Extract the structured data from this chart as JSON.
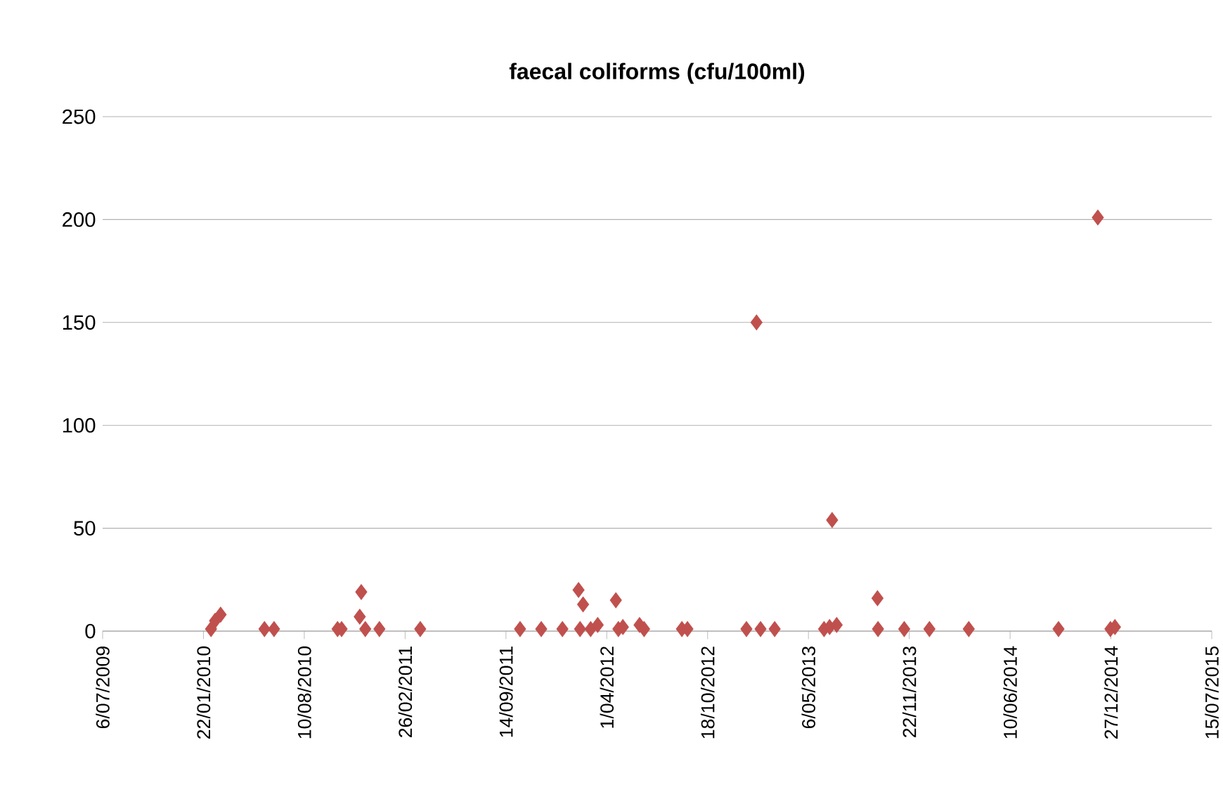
{
  "chart_data": {
    "type": "scatter",
    "title": "faecal coliforms (cfu/100ml)",
    "x": [
      "2010-02-06",
      "2010-02-14",
      "2010-02-25",
      "2010-05-23",
      "2010-06-11",
      "2010-10-15",
      "2010-10-23",
      "2010-12-01",
      "2010-11-28",
      "2010-12-09",
      "2011-01-06",
      "2011-03-28",
      "2011-10-12",
      "2011-11-23",
      "2012-01-04",
      "2012-02-05",
      "2012-02-14",
      "2012-02-08",
      "2012-02-29",
      "2012-03-14",
      "2012-04-19",
      "2012-04-24",
      "2012-05-03",
      "2012-06-05",
      "2012-06-14",
      "2012-08-28",
      "2012-09-08",
      "2013-01-03",
      "2013-01-23",
      "2013-01-31",
      "2013-02-28",
      "2013-06-06",
      "2013-06-17",
      "2013-06-22",
      "2013-07-01",
      "2013-09-20",
      "2013-09-21",
      "2013-11-12",
      "2014-01-01",
      "2014-03-20",
      "2014-09-14",
      "2014-12-01",
      "2014-12-26",
      "2015-01-04"
    ],
    "values": [
      1,
      5,
      8,
      1,
      1,
      1,
      1,
      19,
      7,
      1,
      1,
      1,
      1,
      1,
      1,
      20,
      13,
      1,
      1,
      3,
      15,
      1,
      2,
      3,
      1,
      1,
      1,
      1,
      150,
      1,
      1,
      1,
      2,
      54,
      3,
      16,
      1,
      1,
      1,
      1,
      1,
      201,
      1,
      2
    ],
    "color": "#c0504d",
    "marker": "diamond",
    "xlim": [
      "2009-07-06",
      "2015-07-15"
    ],
    "xticks": [
      {
        "value": "2009-07-06",
        "label": "6/07/2009"
      },
      {
        "value": "2010-01-22",
        "label": "22/01/2010"
      },
      {
        "value": "2010-08-10",
        "label": "10/08/2010"
      },
      {
        "value": "2011-02-26",
        "label": "26/02/2011"
      },
      {
        "value": "2011-09-14",
        "label": "14/09/2011"
      },
      {
        "value": "2012-04-01",
        "label": "1/04/2012"
      },
      {
        "value": "2012-10-18",
        "label": "18/10/2012"
      },
      {
        "value": "2013-05-06",
        "label": "6/05/2013"
      },
      {
        "value": "2013-11-22",
        "label": "22/11/2013"
      },
      {
        "value": "2014-06-10",
        "label": "10/06/2014"
      },
      {
        "value": "2014-12-27",
        "label": "27/12/2014"
      },
      {
        "value": "2015-07-15",
        "label": "15/07/2015"
      }
    ],
    "ylim": [
      0,
      250
    ],
    "yticks": [
      0,
      50,
      100,
      150,
      200,
      250
    ],
    "grid": "y"
  }
}
